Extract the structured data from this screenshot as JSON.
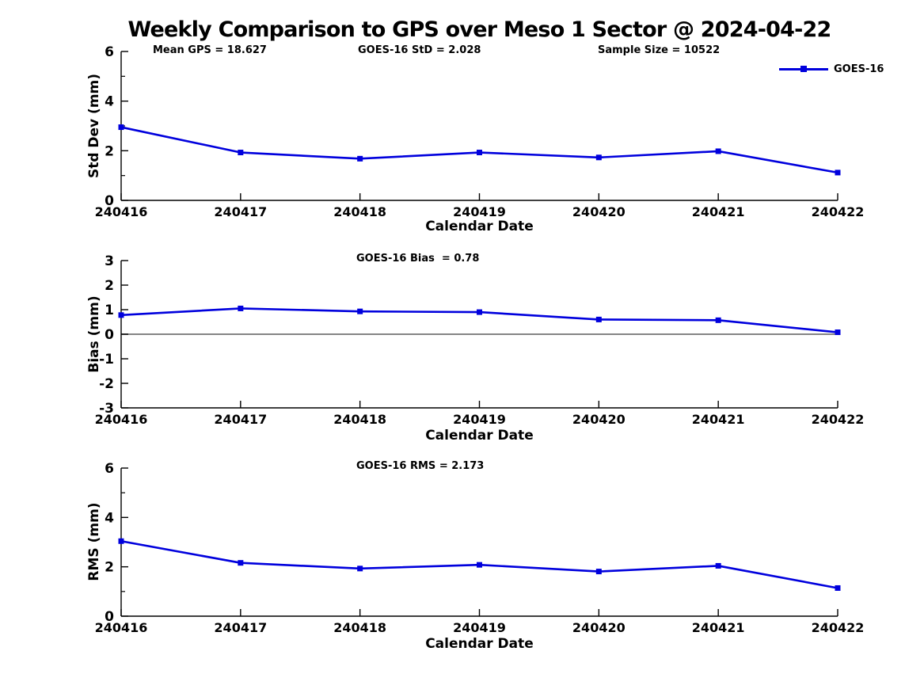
{
  "title": "Weekly Comparison to GPS over Meso 1 Sector @ 2024-04-22",
  "legend": {
    "label": "GOES-16"
  },
  "colors": {
    "series_blue": "#0000dd",
    "zero_line_gray": "#858585",
    "axis_black": "#000000"
  },
  "chart_data": [
    {
      "id": "std-dev",
      "type": "line",
      "title": "",
      "annotations": [
        "Mean GPS = 18.627",
        "GOES-16 StD = 2.028",
        "Sample Size = 10522"
      ],
      "categories": [
        "240416",
        "240417",
        "240418",
        "240419",
        "240420",
        "240421",
        "240422"
      ],
      "series": [
        {
          "name": "GOES-16",
          "values": [
            2.95,
            1.93,
            1.68,
            1.93,
            1.73,
            1.98,
            1.12
          ]
        }
      ],
      "xlabel": "Calendar Date",
      "ylabel": "Std Dev (mm)",
      "ylim": [
        0,
        6
      ],
      "yticks": [
        0,
        2,
        4,
        6
      ],
      "yticks_minor": [
        1,
        3,
        5
      ],
      "zero_line": false,
      "grid": false,
      "legend_position": "top-right"
    },
    {
      "id": "bias",
      "type": "line",
      "title": "",
      "annotations": [
        "GOES-16 Bias  = 0.78"
      ],
      "categories": [
        "240416",
        "240417",
        "240418",
        "240419",
        "240420",
        "240421",
        "240422"
      ],
      "series": [
        {
          "name": "GOES-16",
          "values": [
            0.78,
            1.05,
            0.93,
            0.9,
            0.6,
            0.57,
            0.08
          ]
        }
      ],
      "xlabel": "Calendar Date",
      "ylabel": "Bias (mm)",
      "ylim": [
        -3,
        3
      ],
      "yticks": [
        -3,
        -2,
        -1,
        0,
        1,
        2,
        3
      ],
      "yticks_minor": [],
      "zero_line": true,
      "grid": false,
      "legend_position": "none"
    },
    {
      "id": "rms",
      "type": "line",
      "title": "",
      "annotations": [
        "GOES-16 RMS = 2.173"
      ],
      "categories": [
        "240416",
        "240417",
        "240418",
        "240419",
        "240420",
        "240421",
        "240422"
      ],
      "series": [
        {
          "name": "GOES-16",
          "values": [
            3.04,
            2.16,
            1.93,
            2.08,
            1.81,
            2.04,
            1.14
          ]
        }
      ],
      "xlabel": "Calendar Date",
      "ylabel": "RMS (mm)",
      "ylim": [
        0,
        6
      ],
      "yticks": [
        0,
        2,
        4,
        6
      ],
      "yticks_minor": [
        1,
        3,
        5
      ],
      "zero_line": false,
      "grid": false,
      "legend_position": "none"
    }
  ]
}
